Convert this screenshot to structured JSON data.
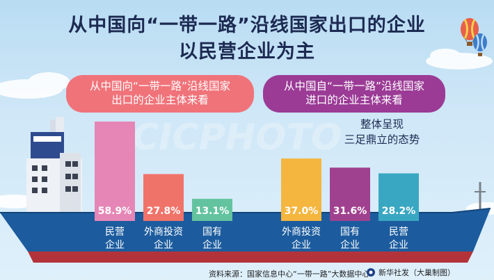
{
  "title": {
    "line1": "从中国向“一带一路”沿线国家出口的企业",
    "line2": "以民营企业为主"
  },
  "colors": {
    "export_pill": "#f0737a",
    "import_pill": "#9b3b96",
    "hull": "#1c5c9e",
    "hull_bottom": "#b3333a"
  },
  "chart_data": [
    {
      "type": "bar",
      "title": "从中国向“一带一路”沿线国家出口的企业主体来看",
      "categories": [
        "民营企业",
        "外商投资企业",
        "国有企业"
      ],
      "category_lines": [
        [
          "民营",
          "企业"
        ],
        [
          "外商投资",
          "企业"
        ],
        [
          "国有",
          "企业"
        ]
      ],
      "values": [
        58.9,
        27.8,
        13.1
      ],
      "labels": [
        "58.9%",
        "27.8%",
        "13.1%"
      ],
      "colors": [
        "#e586b6",
        "#f0736a",
        "#63c39f"
      ],
      "ylim": [
        0,
        70
      ]
    },
    {
      "type": "bar",
      "title": "从中国自“一带一路”沿线国家进口的企业主体来看",
      "categories": [
        "外商投资企业",
        "国有企业",
        "民营企业"
      ],
      "category_lines": [
        [
          "外商投资",
          "企业"
        ],
        [
          "国有",
          "企业"
        ],
        [
          "民营",
          "企业"
        ]
      ],
      "values": [
        37.0,
        31.6,
        28.2
      ],
      "labels": [
        "37.0%",
        "31.6%",
        "28.2%"
      ],
      "colors": [
        "#f4b63f",
        "#a0418f",
        "#3aa7c2"
      ],
      "ylim": [
        0,
        70
      ]
    }
  ],
  "export_pill": {
    "line1": "从中国向“一带一路”沿线国家",
    "line2": "出口的企业主体来看"
  },
  "import_pill": {
    "line1": "从中国自“一带一路”沿线国家",
    "line2": "进口的企业主体来看"
  },
  "note": {
    "line1": "整体呈现",
    "line2": "三足鼎立的态势"
  },
  "watermark": "CICPHOTO",
  "footer": {
    "source": "资料来源：国家信息中心“一带一路”大数据中心",
    "credit": "新华社发（大巢制图）"
  }
}
